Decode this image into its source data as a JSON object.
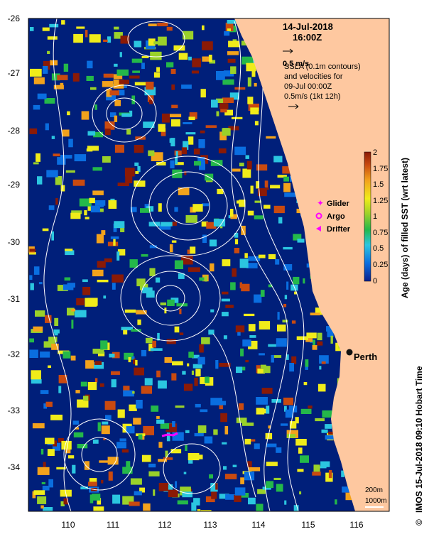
{
  "map": {
    "date": "14-Jul-2018",
    "time": "16:00Z",
    "vector_scale": "0.5 m/s",
    "overlay_desc": [
      "SSLA (0.1m contours)",
      "and velocities for",
      "09-Jul 00:00Z",
      "0.5m/s (1kt 12h)"
    ],
    "city": "Perth",
    "depth_legend": [
      "200m",
      "1000m"
    ],
    "credit": "IMOS 15-Jul-2018 09:10 Hobart Time",
    "colors": {
      "ocean": "#001f7a",
      "land": "#fec8a0",
      "contour": "#ffffff",
      "glider": "#ff00ff",
      "argo": "#ff00ff",
      "drifter": "#ff00ff",
      "track": "#ff00ff"
    }
  },
  "axes": {
    "x_ticks": [
      "110",
      "111",
      "112",
      "113",
      "114",
      "115",
      "116"
    ],
    "y_ticks": [
      "-26",
      "-27",
      "-28",
      "-29",
      "-30",
      "-31",
      "-32",
      "-33",
      "-34"
    ]
  },
  "legend": {
    "items": [
      {
        "label": "Glider",
        "marker": "star"
      },
      {
        "label": "Argo",
        "marker": "circle"
      },
      {
        "label": "Drifter",
        "marker": "triangle"
      }
    ]
  },
  "colorbar": {
    "title": "Age (days) of filled SST (wrt latest)",
    "ticks": [
      "2",
      "1.75",
      "1.5",
      "1.25",
      "1",
      "0.75",
      "0.5",
      "0.25",
      "0"
    ],
    "colors": [
      "#0a1f8c",
      "#0a6ee0",
      "#2bc6e0",
      "#24b84a",
      "#9ad12a",
      "#f0ec1a",
      "#f2a21c",
      "#c94a10",
      "#8a1a06"
    ]
  }
}
